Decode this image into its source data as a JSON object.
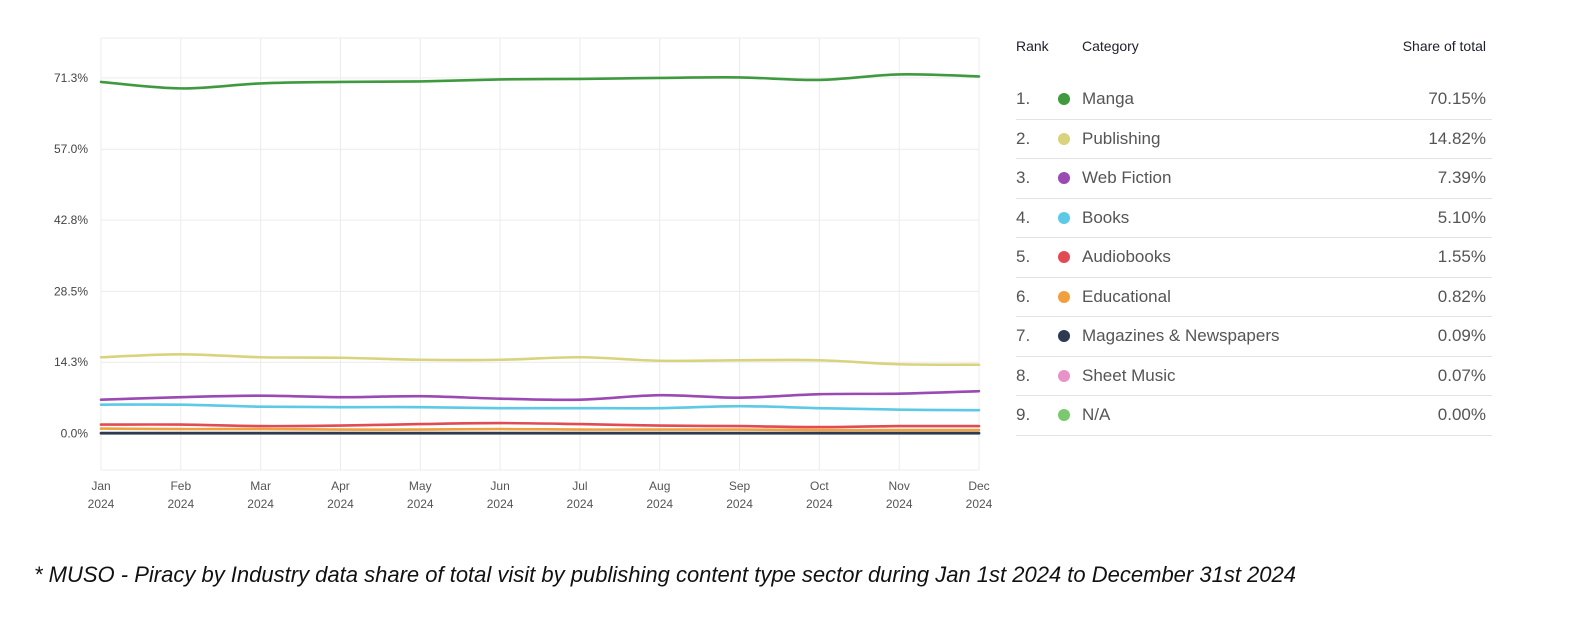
{
  "chart_data": {
    "type": "line",
    "x": [
      "Jan 2024",
      "Feb 2024",
      "Mar 2024",
      "Apr 2024",
      "May 2024",
      "Jun 2024",
      "Jul 2024",
      "Aug 2024",
      "Sep 2024",
      "Oct 2024",
      "Nov 2024",
      "Dec 2024"
    ],
    "x_tick_labels": [
      [
        "Jan",
        "2024"
      ],
      [
        "Feb",
        "2024"
      ],
      [
        "Mar",
        "2024"
      ],
      [
        "Apr",
        "2024"
      ],
      [
        "May",
        "2024"
      ],
      [
        "Jun",
        "2024"
      ],
      [
        "Jul",
        "2024"
      ],
      [
        "Aug",
        "2024"
      ],
      [
        "Sep",
        "2024"
      ],
      [
        "Oct",
        "2024"
      ],
      [
        "Nov",
        "2024"
      ],
      [
        "Dec",
        "2024"
      ]
    ],
    "y_ticks": [
      0.0,
      14.3,
      28.5,
      42.8,
      57.0,
      71.3
    ],
    "y_tick_labels": [
      "0.0%",
      "14.3%",
      "28.5%",
      "42.8%",
      "57.0%",
      "71.3%"
    ],
    "ylim": [
      -7.3,
      79.3
    ],
    "grid": true,
    "legend_position": "right",
    "series": [
      {
        "name": "Manga",
        "color": "#3f9a3f",
        "values": [
          70.5,
          69.2,
          70.2,
          70.5,
          70.6,
          71.0,
          71.1,
          71.3,
          71.4,
          70.9,
          72.0,
          71.6
        ]
      },
      {
        "name": "Publishing",
        "color": "#d9d37e",
        "values": [
          15.3,
          15.9,
          15.3,
          15.2,
          14.8,
          14.8,
          15.3,
          14.6,
          14.7,
          14.7,
          13.9,
          13.8
        ]
      },
      {
        "name": "Web Fiction",
        "color": "#9b49b3",
        "values": [
          6.8,
          7.3,
          7.6,
          7.3,
          7.5,
          7.0,
          6.8,
          7.7,
          7.2,
          7.9,
          8.0,
          8.5
        ]
      },
      {
        "name": "Books",
        "color": "#5cc9e6",
        "values": [
          5.8,
          5.8,
          5.4,
          5.3,
          5.3,
          5.1,
          5.1,
          5.1,
          5.5,
          5.1,
          4.8,
          4.7
        ]
      },
      {
        "name": "Audiobooks",
        "color": "#e14b53",
        "values": [
          1.8,
          1.8,
          1.5,
          1.6,
          1.9,
          2.1,
          1.9,
          1.6,
          1.5,
          1.3,
          1.5,
          1.5
        ]
      },
      {
        "name": "Educational",
        "color": "#f0a03c",
        "values": [
          1.0,
          0.9,
          0.9,
          0.8,
          0.8,
          0.9,
          0.8,
          0.8,
          0.8,
          0.7,
          0.7,
          0.7
        ]
      },
      {
        "name": "Magazines & Newspapers",
        "color": "#2e3a52",
        "values": [
          0.1,
          0.1,
          0.1,
          0.1,
          0.1,
          0.1,
          0.1,
          0.1,
          0.1,
          0.1,
          0.1,
          0.1
        ]
      },
      {
        "name": "Sheet Music",
        "color": "#e893c8",
        "values": [
          0.05,
          0.05,
          0.05,
          0.05,
          0.05,
          0.05,
          0.05,
          0.05,
          0.05,
          0.05,
          0.05,
          0.05
        ]
      },
      {
        "name": "N/A",
        "color": "#7bc96f",
        "values": [
          0.0,
          0.0,
          0.0,
          0.0,
          0.0,
          0.0,
          0.0,
          0.0,
          0.0,
          0.0,
          0.0,
          0.0
        ]
      }
    ]
  },
  "legend_table": {
    "headers": {
      "rank": "Rank",
      "category": "Category",
      "share": "Share of total"
    },
    "rows": [
      {
        "rank": "1.",
        "category": "Manga",
        "share": "70.15%",
        "color": "#3f9a3f"
      },
      {
        "rank": "2.",
        "category": "Publishing",
        "share": "14.82%",
        "color": "#d9d37e"
      },
      {
        "rank": "3.",
        "category": "Web Fiction",
        "share": "7.39%",
        "color": "#9b49b3"
      },
      {
        "rank": "4.",
        "category": "Books",
        "share": "5.10%",
        "color": "#5cc9e6"
      },
      {
        "rank": "5.",
        "category": "Audiobooks",
        "share": "1.55%",
        "color": "#e14b53"
      },
      {
        "rank": "6.",
        "category": "Educational",
        "share": "0.82%",
        "color": "#f0a03c"
      },
      {
        "rank": "7.",
        "category": "Magazines & Newspapers",
        "share": "0.09%",
        "color": "#2e3a52"
      },
      {
        "rank": "8.",
        "category": "Sheet Music",
        "share": "0.07%",
        "color": "#e893c8"
      },
      {
        "rank": "9.",
        "category": "N/A",
        "share": "0.00%",
        "color": "#7bc96f"
      }
    ]
  },
  "footnote": "* MUSO - Piracy by Industry data share of total visit by publishing content type sector during Jan 1st 2024 to December 31st 2024"
}
